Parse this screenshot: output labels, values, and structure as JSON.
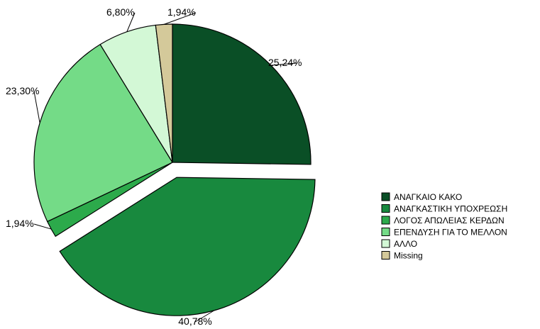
{
  "chart_data": {
    "type": "pie",
    "slices": [
      {
        "label": "ΑΝΑΓΚΑΙΟ ΚΑΚΟ",
        "value": 25.24,
        "value_label": "25,24%",
        "color": "#0a4f26"
      },
      {
        "label": "ΑΝΑΓΚΑΣΤΙΚΗ ΥΠΟΧΡΕΩΣΗ",
        "value": 40.78,
        "value_label": "40,78%",
        "color": "#18893e",
        "exploded": true
      },
      {
        "label": "ΛΟΓΟΣ ΑΠΩΛΕΙΑΣ ΚΕΡΔΩΝ",
        "value": 1.94,
        "value_label": "1,94%",
        "color": "#2caa4b"
      },
      {
        "label": "ΕΠΕΝΔΥΣΗ ΓΙΑ ΤΟ ΜΕΛΛΟΝ",
        "value": 23.3,
        "value_label": "23,30%",
        "color": "#74db87"
      },
      {
        "label": "ΑΛΛΟ",
        "value": 6.8,
        "value_label": "6,80%",
        "color": "#d3f8d6"
      },
      {
        "label": "Missing",
        "value": 1.94,
        "value_label": "1,94%",
        "color": "#d4c99a"
      }
    ],
    "start_angle": "12 o'clock",
    "direction": "clockwise",
    "legend_position": "right"
  }
}
